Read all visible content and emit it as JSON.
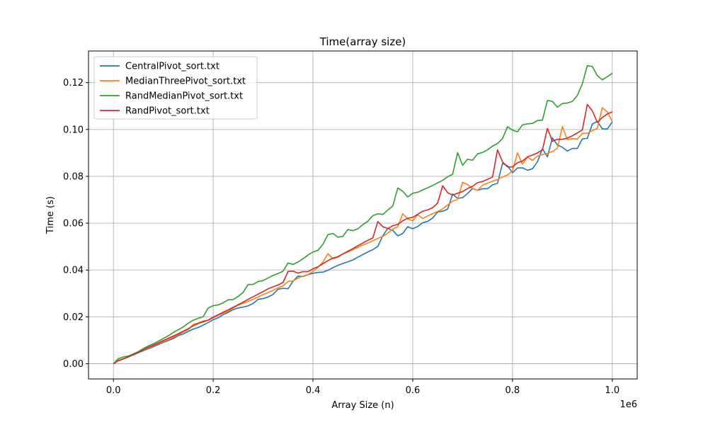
{
  "chart_data": {
    "type": "line",
    "title": "Time(array size)",
    "xlabel": "Array Size (n)",
    "ylabel": "Time (s)",
    "x_offset_label": "1e6",
    "xlim": [
      -50000,
      1050000
    ],
    "ylim": [
      -0.0065,
      0.1335
    ],
    "xticks": [
      0,
      200000,
      400000,
      600000,
      800000,
      1000000
    ],
    "xtick_labels": [
      "0.0",
      "0.2",
      "0.4",
      "0.6",
      "0.8",
      "1.0"
    ],
    "yticks": [
      0.0,
      0.02,
      0.04,
      0.06,
      0.08,
      0.1,
      0.12
    ],
    "ytick_labels": [
      "0.00",
      "0.02",
      "0.04",
      "0.06",
      "0.08",
      "0.10",
      "0.12"
    ],
    "grid": true,
    "legend_position": "top-left",
    "x": [
      0,
      10000,
      20000,
      30000,
      40000,
      50000,
      60000,
      70000,
      80000,
      90000,
      100000,
      110000,
      120000,
      130000,
      140000,
      150000,
      160000,
      170000,
      180000,
      190000,
      200000,
      210000,
      220000,
      230000,
      240000,
      250000,
      260000,
      270000,
      280000,
      290000,
      300000,
      310000,
      320000,
      330000,
      340000,
      350000,
      360000,
      370000,
      380000,
      390000,
      400000,
      410000,
      420000,
      430000,
      440000,
      450000,
      460000,
      470000,
      480000,
      490000,
      500000,
      510000,
      520000,
      530000,
      540000,
      550000,
      560000,
      570000,
      580000,
      590000,
      600000,
      610000,
      620000,
      630000,
      640000,
      650000,
      660000,
      670000,
      680000,
      690000,
      700000,
      710000,
      720000,
      730000,
      740000,
      750000,
      760000,
      770000,
      780000,
      790000,
      800000,
      810000,
      820000,
      830000,
      840000,
      850000,
      860000,
      870000,
      880000,
      890000,
      900000,
      910000,
      920000,
      930000,
      940000,
      950000,
      960000,
      970000,
      980000,
      990000,
      1000000
    ],
    "series": [
      {
        "name": "CentralPivot_sort.txt",
        "color": "#1f77b4",
        "values": [
          0.0,
          0.0015,
          0.0022,
          0.0029,
          0.0038,
          0.0047,
          0.0056,
          0.0064,
          0.0073,
          0.0082,
          0.0091,
          0.0099,
          0.0108,
          0.012,
          0.0127,
          0.0138,
          0.0148,
          0.0155,
          0.0165,
          0.0176,
          0.0188,
          0.0196,
          0.021,
          0.0219,
          0.0231,
          0.0238,
          0.0242,
          0.0247,
          0.0257,
          0.0275,
          0.0278,
          0.0285,
          0.0296,
          0.0318,
          0.0322,
          0.032,
          0.0352,
          0.0374,
          0.0372,
          0.038,
          0.0386,
          0.039,
          0.0391,
          0.0399,
          0.041,
          0.042,
          0.0428,
          0.0435,
          0.0443,
          0.0455,
          0.0466,
          0.0477,
          0.0487,
          0.0501,
          0.0546,
          0.0578,
          0.0569,
          0.0546,
          0.0556,
          0.0585,
          0.0576,
          0.0586,
          0.0602,
          0.0608,
          0.0622,
          0.0648,
          0.0651,
          0.066,
          0.0724,
          0.0706,
          0.0709,
          0.0727,
          0.0748,
          0.074,
          0.0747,
          0.0747,
          0.0764,
          0.077,
          0.0855,
          0.0845,
          0.0815,
          0.0836,
          0.0836,
          0.0826,
          0.0832,
          0.0862,
          0.0918,
          0.0883,
          0.0964,
          0.0934,
          0.0924,
          0.0908,
          0.0919,
          0.0919,
          0.096,
          0.0962,
          0.1023,
          0.1035,
          0.1003,
          0.1002,
          0.1032
        ]
      },
      {
        "name": "MedianThreePivot_sort.txt",
        "color": "#ff7f0e",
        "values": [
          0.0,
          0.0015,
          0.0021,
          0.0031,
          0.004,
          0.0049,
          0.0058,
          0.0067,
          0.0077,
          0.0086,
          0.0094,
          0.0103,
          0.0113,
          0.0124,
          0.0135,
          0.0146,
          0.0168,
          0.0174,
          0.0183,
          0.0185,
          0.0196,
          0.0207,
          0.0216,
          0.0224,
          0.0238,
          0.025,
          0.0258,
          0.0266,
          0.0275,
          0.0285,
          0.0295,
          0.0304,
          0.0313,
          0.0324,
          0.0332,
          0.0351,
          0.0354,
          0.0365,
          0.0374,
          0.038,
          0.0394,
          0.0412,
          0.0434,
          0.047,
          0.0448,
          0.0455,
          0.0469,
          0.0477,
          0.0487,
          0.0497,
          0.0507,
          0.0515,
          0.0525,
          0.0535,
          0.0543,
          0.0558,
          0.0575,
          0.0585,
          0.064,
          0.0618,
          0.061,
          0.0636,
          0.062,
          0.0631,
          0.0641,
          0.065,
          0.0661,
          0.0678,
          0.0694,
          0.0701,
          0.0774,
          0.0765,
          0.0748,
          0.074,
          0.0762,
          0.0771,
          0.0779,
          0.0786,
          0.0797,
          0.0806,
          0.0823,
          0.09,
          0.0852,
          0.0882,
          0.0868,
          0.0887,
          0.0893,
          0.0898,
          0.0906,
          0.092,
          0.1012,
          0.0957,
          0.0961,
          0.0959,
          0.0983,
          0.0984,
          0.0995,
          0.1005,
          0.1093,
          0.1075,
          0.1034
        ]
      },
      {
        "name": "RandMedianPivot_sort.txt",
        "color": "#2ca02c",
        "values": [
          0.0,
          0.0022,
          0.0029,
          0.0033,
          0.0042,
          0.0052,
          0.0065,
          0.0076,
          0.0085,
          0.0096,
          0.0108,
          0.0119,
          0.0134,
          0.0145,
          0.0157,
          0.0173,
          0.0186,
          0.0194,
          0.0201,
          0.0238,
          0.0248,
          0.0251,
          0.026,
          0.0273,
          0.0274,
          0.0287,
          0.0305,
          0.0338,
          0.0339,
          0.0351,
          0.0355,
          0.0366,
          0.0377,
          0.0385,
          0.0395,
          0.043,
          0.0424,
          0.0434,
          0.0448,
          0.0464,
          0.0477,
          0.0484,
          0.051,
          0.0551,
          0.0556,
          0.054,
          0.0544,
          0.0573,
          0.0568,
          0.0576,
          0.0594,
          0.0608,
          0.0632,
          0.064,
          0.0637,
          0.0656,
          0.0673,
          0.075,
          0.0736,
          0.0712,
          0.0728,
          0.0732,
          0.0742,
          0.0751,
          0.0761,
          0.0772,
          0.0783,
          0.0798,
          0.0809,
          0.0901,
          0.0847,
          0.0873,
          0.0869,
          0.0896,
          0.0902,
          0.0913,
          0.0929,
          0.094,
          0.0961,
          0.1012,
          0.0997,
          0.099,
          0.102,
          0.1024,
          0.1026,
          0.1038,
          0.104,
          0.1124,
          0.112,
          0.1095,
          0.1111,
          0.1113,
          0.112,
          0.1145,
          0.1195,
          0.1272,
          0.1269,
          0.123,
          0.1212,
          0.1225,
          0.124
        ]
      },
      {
        "name": "RandPivot_sort.txt",
        "color": "#d62728",
        "values": [
          0.0,
          0.0013,
          0.002,
          0.0029,
          0.0039,
          0.0049,
          0.0059,
          0.007,
          0.0079,
          0.0089,
          0.0099,
          0.0109,
          0.0118,
          0.0128,
          0.0139,
          0.015,
          0.0162,
          0.0172,
          0.0179,
          0.0186,
          0.0199,
          0.0209,
          0.022,
          0.023,
          0.0241,
          0.0252,
          0.0263,
          0.0275,
          0.0286,
          0.0297,
          0.0308,
          0.032,
          0.0328,
          0.0336,
          0.0347,
          0.0394,
          0.0395,
          0.0387,
          0.0393,
          0.0393,
          0.0405,
          0.0414,
          0.0427,
          0.044,
          0.0451,
          0.0457,
          0.0469,
          0.048,
          0.0491,
          0.0504,
          0.0515,
          0.0527,
          0.0537,
          0.0607,
          0.0585,
          0.0577,
          0.0589,
          0.0595,
          0.061,
          0.0621,
          0.0625,
          0.0638,
          0.0651,
          0.0657,
          0.0666,
          0.0686,
          0.076,
          0.073,
          0.072,
          0.0728,
          0.0735,
          0.0748,
          0.0757,
          0.0773,
          0.0778,
          0.0787,
          0.0797,
          0.0913,
          0.0862,
          0.084,
          0.084,
          0.0858,
          0.0865,
          0.0883,
          0.0891,
          0.09,
          0.0913,
          0.1005,
          0.095,
          0.0958,
          0.0958,
          0.0963,
          0.0973,
          0.0985,
          0.0998,
          0.1107,
          0.108,
          0.103,
          0.1051,
          0.1066,
          0.1075
        ]
      }
    ]
  }
}
